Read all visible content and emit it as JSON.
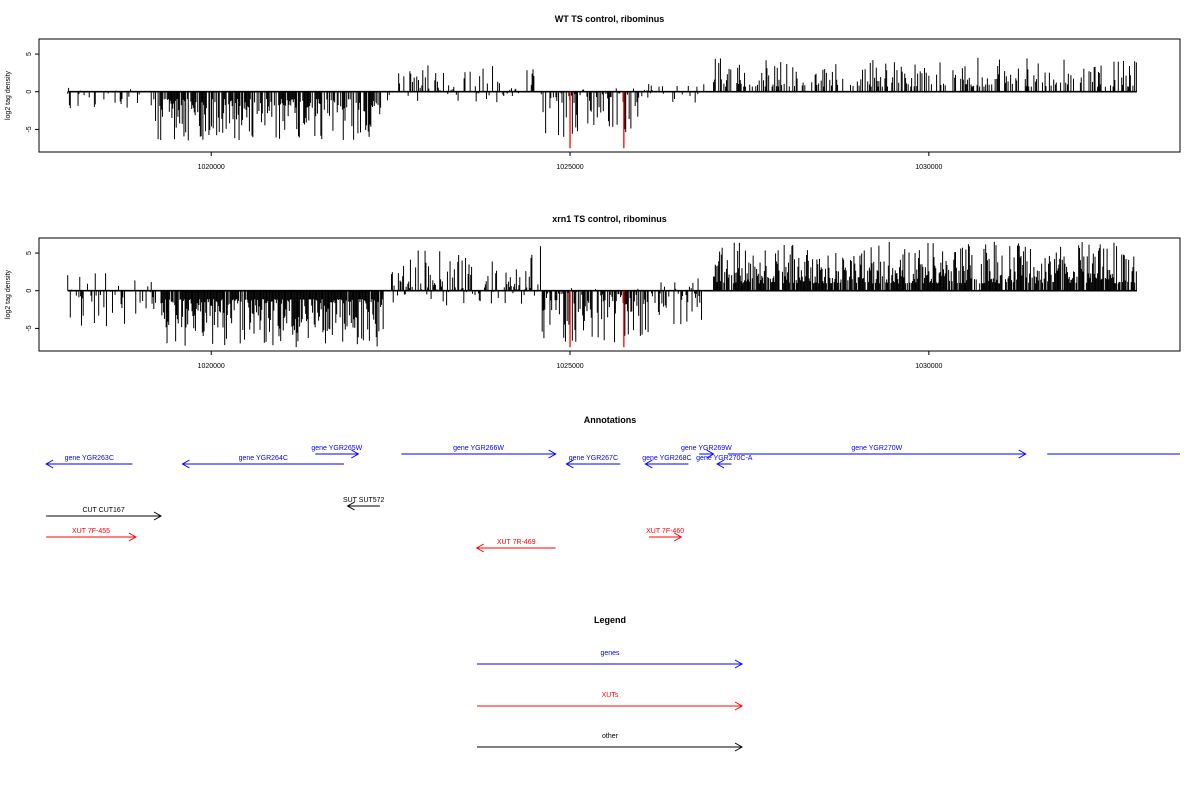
{
  "colors": {
    "bars": "#000000",
    "highlight": "#ff0000",
    "genes": "#0000ff",
    "XUTs": "#ff0000",
    "other": "#000000"
  },
  "chart_data": [
    {
      "type": "bar",
      "title": "WT TS control, ribominus",
      "xlabel": "",
      "ylabel": "log2 tag density",
      "xlim": [
        1017600,
        1033500
      ],
      "ylim": [
        -8,
        7
      ],
      "xticks": [
        "1020000",
        "1025000",
        "1030000"
      ],
      "yticks": [
        "-5",
        "0",
        "5"
      ],
      "segments": [
        {
          "from": 1018000,
          "to": 1019200,
          "density": 0.25,
          "min": -3.5,
          "max": 1.0
        },
        {
          "from": 1019200,
          "to": 1022300,
          "density": 0.75,
          "min": -6.5,
          "max": 0.0
        },
        {
          "from": 1022300,
          "to": 1022500,
          "density": 0.3,
          "min": -3.0,
          "max": 0.0
        },
        {
          "from": 1022600,
          "to": 1024500,
          "density": 0.5,
          "min": -1.5,
          "max": 3.5
        },
        {
          "from": 1024600,
          "to": 1026000,
          "density": 0.6,
          "min": -6.0,
          "max": 0.5
        },
        {
          "from": 1026000,
          "to": 1026900,
          "density": 0.35,
          "min": -2.0,
          "max": 1.5
        },
        {
          "from": 1027000,
          "to": 1032900,
          "density": 0.45,
          "min": 0.0,
          "max": 4.5
        }
      ],
      "highlights": [
        {
          "x": 1025000,
          "value": -7.5
        },
        {
          "x": 1025750,
          "value": -7.5
        }
      ]
    },
    {
      "type": "bar",
      "title": "xrn1 TS control, ribominus",
      "xlabel": "",
      "ylabel": "log2 tag density",
      "xlim": [
        1017600,
        1033500
      ],
      "ylim": [
        -8,
        7
      ],
      "xticks": [
        "1020000",
        "1025000",
        "1030000"
      ],
      "yticks": [
        "-5",
        "0",
        "5"
      ],
      "segments": [
        {
          "from": 1018000,
          "to": 1019300,
          "density": 0.45,
          "min": -5.0,
          "max": 2.5
        },
        {
          "from": 1019300,
          "to": 1022400,
          "density": 0.95,
          "min": -7.5,
          "max": 0.0
        },
        {
          "from": 1022500,
          "to": 1024600,
          "density": 0.8,
          "min": -2.0,
          "max": 6.0
        },
        {
          "from": 1024600,
          "to": 1026100,
          "density": 0.85,
          "min": -7.0,
          "max": 0.5
        },
        {
          "from": 1026100,
          "to": 1026900,
          "density": 0.6,
          "min": -4.5,
          "max": 2.0
        },
        {
          "from": 1027000,
          "to": 1032900,
          "density": 0.85,
          "min": 0.0,
          "max": 6.5
        }
      ],
      "highlights": [
        {
          "x": 1025000,
          "value": -7.5
        },
        {
          "x": 1025750,
          "value": -7.5
        }
      ]
    }
  ],
  "annotations": {
    "title": "Annotations",
    "features": [
      {
        "label": "gene YGR263C",
        "type": "genes",
        "row": 2,
        "from": 1018900,
        "to": 1017700
      },
      {
        "label": "gene YGR264C",
        "type": "genes",
        "row": 2,
        "from": 1021850,
        "to": 1019600
      },
      {
        "label": "gene YGR265W",
        "type": "genes",
        "row": 1,
        "from": 1021450,
        "to": 1022050
      },
      {
        "label": "gene YGR266W",
        "type": "genes",
        "row": 1,
        "from": 1022650,
        "to": 1024800
      },
      {
        "label": "gene YGR267C",
        "type": "genes",
        "row": 2,
        "from": 1025700,
        "to": 1024950
      },
      {
        "label": "gene YGR268C",
        "type": "genes",
        "row": 2,
        "from": 1026650,
        "to": 1026050
      },
      {
        "label": "gene YGR269W",
        "type": "genes",
        "row": 1,
        "from": 1026800,
        "to": 1027000
      },
      {
        "label": "gene YGR270C-A",
        "type": "genes",
        "row": 2,
        "from": 1027250,
        "to": 1027050
      },
      {
        "label": "gene YGR270W",
        "type": "genes",
        "row": 1,
        "from": 1027200,
        "to": 1031350
      },
      {
        "label": "",
        "type": "genes",
        "row": 1,
        "from": 1031650,
        "to": 1033500
      },
      {
        "label": "SUT SUT572",
        "type": "other",
        "row": 4,
        "from": 1022350,
        "to": 1021900
      },
      {
        "label": "CUT CUT167",
        "type": "other",
        "row": 5,
        "from": 1017700,
        "to": 1019300
      },
      {
        "label": "XUT 7F-455",
        "type": "XUTs",
        "row": 6,
        "from": 1017700,
        "to": 1018950
      },
      {
        "label": "XUT 7F-460",
        "type": "XUTs",
        "row": 6,
        "from": 1026100,
        "to": 1026550
      },
      {
        "label": "XUT 7R-469",
        "type": "XUTs",
        "row": 7,
        "from": 1024800,
        "to": 1023700
      }
    ]
  },
  "legend": {
    "title": "Legend",
    "items": [
      {
        "label": "genes",
        "type": "genes"
      },
      {
        "label": "XUTs",
        "type": "XUTs"
      },
      {
        "label": "other",
        "type": "other"
      }
    ]
  }
}
